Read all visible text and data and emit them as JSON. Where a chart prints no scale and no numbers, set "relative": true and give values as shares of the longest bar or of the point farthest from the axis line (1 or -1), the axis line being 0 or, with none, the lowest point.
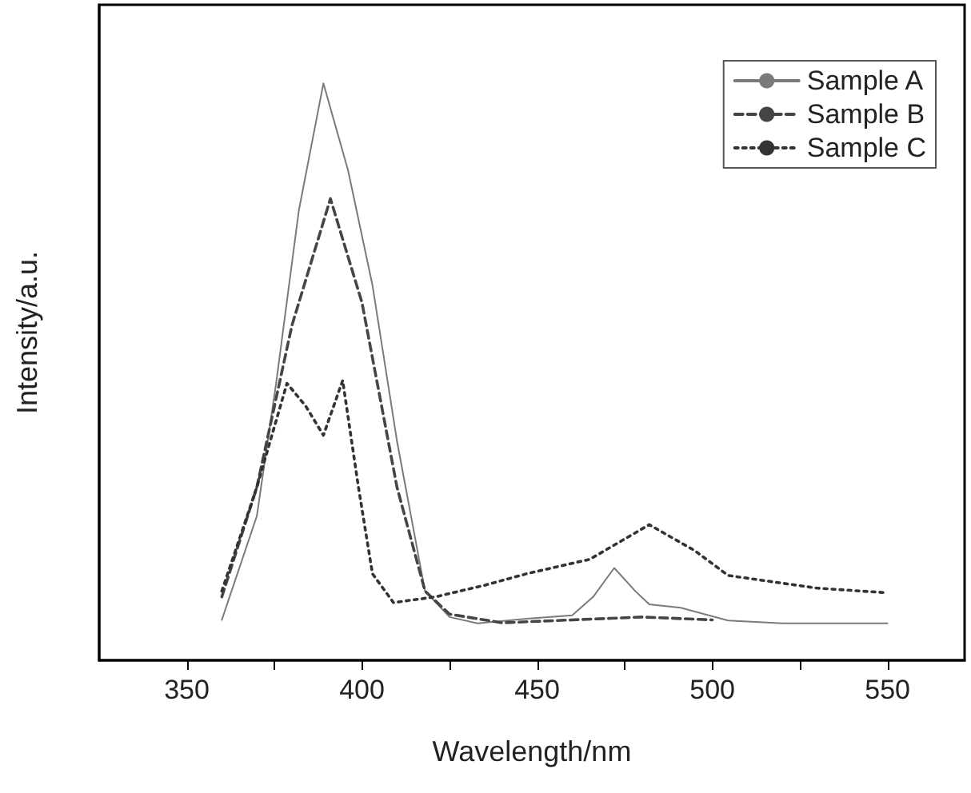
{
  "chart_data": {
    "type": "line",
    "xlabel": "Wavelength/nm",
    "ylabel": "Intensity/a.u.",
    "relative": true,
    "xlim": [
      325,
      572
    ],
    "xticks": [
      350,
      {
        "value": 375,
        "label": null
      },
      400,
      {
        "value": 425,
        "label": null
      },
      450,
      {
        "value": 475,
        "label": null
      },
      500,
      {
        "value": 525,
        "label": null
      },
      550
    ],
    "legend": "top right",
    "grid": false,
    "marker": "none",
    "series": [
      {
        "name": "Sample A",
        "color": "#7a7a7a",
        "line_style": "solid",
        "x": [
          360,
          370,
          375.5,
          382,
          389,
          396,
          403,
          410,
          418,
          425,
          433,
          447,
          460,
          466,
          472,
          478,
          482,
          491,
          504.5,
          520,
          550
        ],
        "values": [
          0.07,
          0.25,
          0.48,
          0.78,
          1,
          0.85,
          0.65,
          0.38,
          0.12,
          0.075,
          0.064,
          0.072,
          0.078,
          0.11,
          0.16,
          0.12,
          0.097,
          0.091,
          0.069,
          0.064,
          0.064
        ]
      },
      {
        "name": "Sample B",
        "color": "#454545",
        "line_style": "dashed",
        "x": [
          360,
          370,
          380,
          391,
          400,
          410,
          418,
          425,
          440,
          460,
          480,
          500
        ],
        "values": [
          0.11,
          0.3,
          0.58,
          0.8,
          0.62,
          0.3,
          0.12,
          0.08,
          0.065,
          0.07,
          0.075,
          0.07
        ]
      },
      {
        "name": "Sample C",
        "color": "#333333",
        "line_style": "dotted",
        "x": [
          360,
          370,
          378.6,
          384,
          389,
          394.5,
          399,
          403,
          409,
          421,
          435,
          447,
          465,
          482,
          495,
          504.5,
          530,
          550
        ],
        "values": [
          0.12,
          0.3,
          0.48,
          0.44,
          0.39,
          0.485,
          0.3,
          0.15,
          0.1,
          0.11,
          0.13,
          0.15,
          0.175,
          0.235,
          0.19,
          0.147,
          0.125,
          0.117
        ]
      }
    ]
  }
}
